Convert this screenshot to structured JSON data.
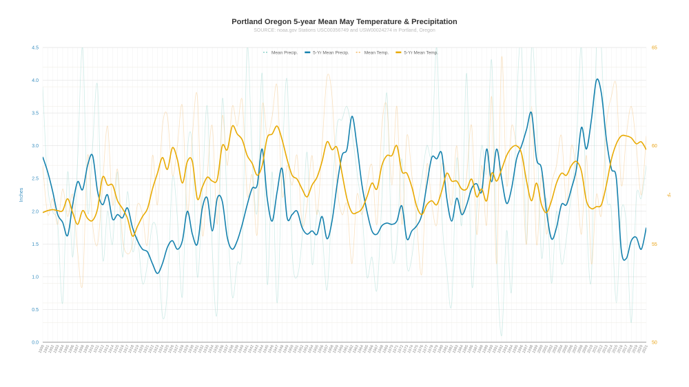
{
  "chart_data": {
    "type": "line",
    "title": "Portland Oregon 5-year Mean May Temperature & Precipitation",
    "subtitle": "SOURCE: noaa.gov Stations USC00356749 and USW00024274 in Portland, Oregon",
    "ylabel_left": "Inches",
    "ylabel_right": "°F",
    "ylim_left": [
      0,
      4.5
    ],
    "ylim_right": [
      50,
      65
    ],
    "yticks_left": [
      "0.0",
      "0.5",
      "1.0",
      "1.5",
      "2.0",
      "2.5",
      "3.0",
      "3.5",
      "4.0",
      "4.5"
    ],
    "yticks_right": [
      "50",
      "55",
      "60",
      "65"
    ],
    "grid": true,
    "legend_position": "top-center",
    "x_start": 1900,
    "x_end": 2021,
    "colors": {
      "mean_precip": "#a8dcd6",
      "five_yr_precip": "#1380ad",
      "mean_temp": "#f5c98a",
      "five_yr_temp": "#e8a900",
      "left_axis": "#3a8fc0",
      "right_axis": "#e8a317"
    },
    "series": [
      {
        "name": "Mean Precip.",
        "axis": "left",
        "style": "faint",
        "values": [
          3.9,
          2.4,
          2.0,
          1.8,
          0.6,
          2.6,
          1.3,
          2.8,
          4.5,
          2.0,
          3.0,
          3.9,
          1.3,
          2.0,
          1.5,
          2.6,
          1.3,
          2.3,
          1.4,
          1.6,
          0.9,
          1.2,
          1.8,
          1.6,
          0.4,
          0.8,
          2.5,
          1.9,
          0.7,
          2.9,
          3.0,
          1.0,
          2.3,
          3.6,
          1.4,
          0.5,
          3.7,
          2.0,
          0.7,
          1.2,
          1.5,
          4.5,
          2.8,
          2.0,
          4.1,
          0.9,
          2.6,
          0.6,
          2.7,
          4.0,
          1.4,
          1.0,
          1.6,
          2.9,
          1.2,
          2.0,
          1.7,
          0.8,
          2.2,
          3.3,
          3.4,
          3.6,
          3.2,
          2.6,
          2.0,
          1.0,
          1.3,
          0.8,
          2.2,
          3.8,
          1.4,
          1.5,
          2.8,
          1.2,
          1.3,
          2.0,
          2.5,
          3.0,
          2.9,
          4.5,
          2.0,
          1.1,
          0.6,
          2.8,
          1.8,
          4.1,
          0.9,
          2.0,
          3.0,
          2.6,
          4.3,
          1.4,
          0.1,
          1.7,
          0.8,
          3.6,
          4.5,
          1.5,
          4.5,
          3.4,
          1.3,
          2.2,
          0.9,
          2.0,
          1.2,
          1.6,
          2.3,
          3.0,
          4.5,
          2.0,
          1.0,
          4.5,
          4.5,
          2.3,
          2.0,
          0.6,
          2.0,
          1.8,
          0.3,
          2.2,
          2.2,
          2.7
        ]
      },
      {
        "name": "5-Yr Mean Precip.",
        "axis": "left",
        "style": "bold",
        "values": [
          2.83,
          2.6,
          2.3,
          1.95,
          1.83,
          1.63,
          2.1,
          2.45,
          2.33,
          2.7,
          2.85,
          2.3,
          2.1,
          2.25,
          1.88,
          1.95,
          1.9,
          2.05,
          1.75,
          1.55,
          1.42,
          1.38,
          1.2,
          1.05,
          1.2,
          1.45,
          1.55,
          1.42,
          1.55,
          2.0,
          1.65,
          1.5,
          2.05,
          2.2,
          1.7,
          2.2,
          2.15,
          1.6,
          1.42,
          1.55,
          1.8,
          2.1,
          2.35,
          2.4,
          2.95,
          2.2,
          1.85,
          2.3,
          2.65,
          1.9,
          1.95,
          2.0,
          1.75,
          1.65,
          1.7,
          1.65,
          1.92,
          1.58,
          1.85,
          2.4,
          2.85,
          2.95,
          3.45,
          3.0,
          2.4,
          2.0,
          1.7,
          1.65,
          1.78,
          1.82,
          1.8,
          1.85,
          2.08,
          1.58,
          1.7,
          1.78,
          1.95,
          2.4,
          2.82,
          2.8,
          2.88,
          2.2,
          1.85,
          2.2,
          1.95,
          2.1,
          2.35,
          2.42,
          2.3,
          2.95,
          2.45,
          2.95,
          2.5,
          2.12,
          2.35,
          2.8,
          3.0,
          3.25,
          3.5,
          2.8,
          2.65,
          2.0,
          1.58,
          1.75,
          2.1,
          2.1,
          2.35,
          2.65,
          3.28,
          2.95,
          3.4,
          4.0,
          3.8,
          3.1,
          2.65,
          2.5,
          1.4,
          1.28,
          1.55,
          1.6,
          1.42,
          1.75
        ]
      },
      {
        "name": "Mean Temp.",
        "axis": "right",
        "style": "faint",
        "values": [
          59.0,
          56.5,
          57.3,
          56.0,
          57.8,
          56.4,
          57.5,
          54.6,
          53.0,
          59.5,
          56.0,
          55.0,
          58.0,
          61.0,
          57.0,
          58.8,
          55.3,
          54.5,
          55.0,
          57.0,
          56.5,
          55.0,
          59.5,
          57.0,
          61.0,
          61.5,
          58.5,
          60.0,
          62.0,
          56.5,
          60.5,
          62.5,
          55.5,
          58.5,
          61.0,
          56.0,
          61.5,
          59.0,
          62.0,
          61.0,
          62.3,
          57.5,
          58.5,
          55.5,
          62.0,
          60.5,
          61.5,
          63.0,
          57.5,
          59.0,
          58.0,
          59.5,
          56.0,
          57.0,
          59.5,
          56.5,
          60.0,
          63.5,
          62.5,
          58.0,
          56.5,
          57.0,
          54.0,
          57.5,
          56.5,
          58.0,
          59.0,
          56.0,
          61.0,
          62.0,
          58.0,
          62.0,
          56.0,
          60.5,
          58.5,
          56.0,
          53.5,
          59.0,
          57.0,
          56.0,
          59.0,
          58.5,
          57.0,
          60.0,
          56.5,
          58.5,
          61.0,
          55.5,
          59.0,
          56.0,
          62.5,
          54.0,
          64.5,
          58.0,
          61.0,
          60.0,
          59.5,
          55.0,
          62.0,
          55.0,
          58.5,
          55.5,
          58.0,
          59.0,
          60.5,
          57.0,
          60.0,
          58.5,
          55.5,
          59.5,
          54.0,
          57.5,
          56.5,
          61.0,
          62.5,
          63.0,
          58.0,
          60.5,
          62.0,
          60.0,
          57.5,
          60.5
        ]
      },
      {
        "name": "5-Yr Mean Temp.",
        "axis": "right",
        "style": "bold",
        "values": [
          56.6,
          56.7,
          56.75,
          56.7,
          56.7,
          57.3,
          56.6,
          56.0,
          56.7,
          56.3,
          56.2,
          56.8,
          58.4,
          58.0,
          58.0,
          57.2,
          56.8,
          56.3,
          55.4,
          55.9,
          56.4,
          56.8,
          57.8,
          58.6,
          59.4,
          58.8,
          59.9,
          59.3,
          58.1,
          59.2,
          59.2,
          57.3,
          57.9,
          58.4,
          58.2,
          58.3,
          60.0,
          59.8,
          61.0,
          60.6,
          60.3,
          59.5,
          59.1,
          58.5,
          59.0,
          60.4,
          60.6,
          61.0,
          60.3,
          59.3,
          58.5,
          58.3,
          57.8,
          57.4,
          58.0,
          58.4,
          59.2,
          60.2,
          59.8,
          59.9,
          58.6,
          57.3,
          56.6,
          56.6,
          56.8,
          57.4,
          58.1,
          57.8,
          59.0,
          59.5,
          59.5,
          60.0,
          58.7,
          58.6,
          57.9,
          56.9,
          56.5,
          57.0,
          57.2,
          57.0,
          57.7,
          58.6,
          58.2,
          58.2,
          57.8,
          57.8,
          58.3,
          57.4,
          57.8,
          57.2,
          58.6,
          58.2,
          58.8,
          59.5,
          59.9,
          60.0,
          59.6,
          58.2,
          57.2,
          58.1,
          57.0,
          56.6,
          57.2,
          58.1,
          58.6,
          58.5,
          59.0,
          59.2,
          58.7,
          57.2,
          56.8,
          56.9,
          57.0,
          58.0,
          59.3,
          60.1,
          60.5,
          60.5,
          60.4,
          60.1,
          60.2,
          59.8
        ]
      }
    ]
  }
}
